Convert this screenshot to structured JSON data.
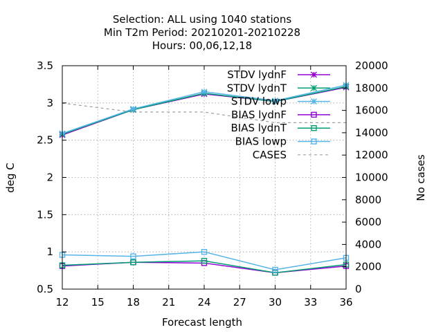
{
  "chart_data": {
    "type": "line",
    "title_lines": [
      "Selection: ALL using  1040 stations",
      "Min T2m   Period: 20210201-20210228",
      "Hours:  00,06,12,18"
    ],
    "xlabel": "Forecast length",
    "ylabel": "deg C",
    "y2label": "No cases",
    "xlim": [
      12,
      36
    ],
    "ylim": [
      0.5,
      3.5
    ],
    "y2lim": [
      0,
      20000
    ],
    "xticks": [
      12,
      15,
      18,
      21,
      24,
      27,
      30,
      33,
      36
    ],
    "yticks": [
      "0.5",
      "1",
      "1.5",
      "2",
      "2.5",
      "3",
      "3.5"
    ],
    "y2ticks": [
      0,
      2000,
      4000,
      6000,
      8000,
      10000,
      12000,
      14000,
      16000,
      18000,
      20000
    ],
    "grid": true,
    "legend_position": "top-right",
    "x": [
      12,
      18,
      24,
      30,
      36
    ],
    "series": [
      {
        "name": "STDV lydnF",
        "axis": "y1",
        "color": "#9400d3",
        "marker": "star",
        "dash": false,
        "values": [
          2.57,
          2.91,
          3.12,
          3.02,
          3.21
        ]
      },
      {
        "name": "STDV lydnT",
        "axis": "y1",
        "color": "#009e73",
        "marker": "star",
        "dash": false,
        "values": [
          2.58,
          2.91,
          3.13,
          3.02,
          3.22
        ]
      },
      {
        "name": "STDV lowp",
        "axis": "y1",
        "color": "#56b4e9",
        "marker": "star",
        "dash": false,
        "values": [
          2.59,
          2.92,
          3.15,
          3.03,
          3.24
        ]
      },
      {
        "name": "BIAS lydnF",
        "axis": "y1",
        "color": "#9400d3",
        "marker": "square",
        "dash": false,
        "values": [
          0.81,
          0.86,
          0.85,
          0.72,
          0.81
        ]
      },
      {
        "name": "BIAS lydnT",
        "axis": "y1",
        "color": "#009e73",
        "marker": "square",
        "dash": false,
        "values": [
          0.82,
          0.86,
          0.88,
          0.72,
          0.83
        ]
      },
      {
        "name": "BIAS lowp",
        "axis": "y1",
        "color": "#56b4e9",
        "marker": "square",
        "dash": false,
        "values": [
          0.96,
          0.94,
          1.0,
          0.76,
          0.92
        ]
      },
      {
        "name": "CASES",
        "axis": "y2",
        "color": "#a0a0a0",
        "marker": "none",
        "dash": true,
        "values": [
          16650,
          15850,
          15850,
          14900,
          14900
        ]
      }
    ]
  }
}
